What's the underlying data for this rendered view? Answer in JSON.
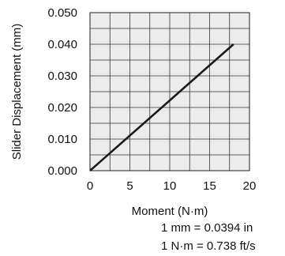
{
  "chart_data": {
    "type": "line",
    "xlabel": "Moment (N·m)",
    "ylabel": "Slider Displacement (mm)",
    "xlim": [
      0,
      20
    ],
    "ylim": [
      0,
      0.05
    ],
    "x_ticks": [
      0,
      5,
      10,
      15,
      20
    ],
    "y_ticks": [
      "0.000",
      "0.010",
      "0.020",
      "0.030",
      "0.040",
      "0.050"
    ],
    "grid": true,
    "x_grid_step": 2.5,
    "y_grid_step": 0.005,
    "plot_background": "#ececec",
    "line_color": "#1a1a1a",
    "series": [
      {
        "x": [
          0,
          18
        ],
        "y": [
          0,
          0.04
        ]
      }
    ],
    "notes": [
      "1 mm = 0.0394 in",
      "1 N·m = 0.738 ft/s"
    ]
  }
}
